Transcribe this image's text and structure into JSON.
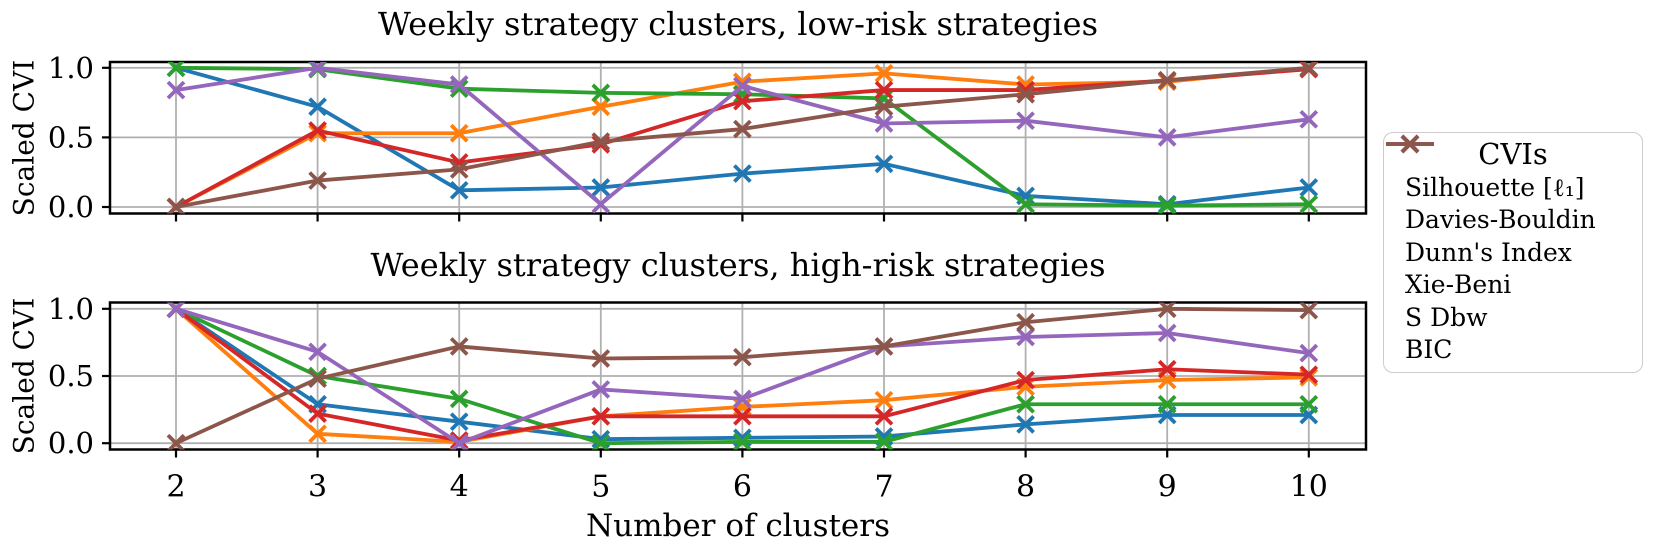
{
  "figure": {
    "xlabel": "Number of clusters",
    "ylabel": "Scaled CVI",
    "background": "#ffffff",
    "grid_color": "#b0b0b0",
    "frame_color": "#000000"
  },
  "legend": {
    "title": "CVIs",
    "position": "right"
  },
  "chart_data": [
    {
      "type": "line",
      "title": "Weekly strategy clusters, low-risk strategies",
      "xlabel": "Number of clusters",
      "ylabel": "Scaled CVI",
      "x": [
        2,
        3,
        4,
        5,
        6,
        7,
        8,
        9,
        10
      ],
      "xtick_labels": [
        "2",
        "3",
        "4",
        "5",
        "6",
        "7",
        "8",
        "9",
        "10"
      ],
      "yticks": [
        0.0,
        0.5,
        1.0
      ],
      "ytick_labels": [
        "0.0",
        "0.5",
        "1.0"
      ],
      "ylim": [
        -0.05,
        1.05
      ],
      "grid": true,
      "marker": "x",
      "series": [
        {
          "name": "Silhouette [ℓ₁]",
          "color": "#1f77b4",
          "values": [
            1.0,
            0.72,
            0.12,
            0.14,
            0.24,
            0.31,
            0.08,
            0.02,
            0.14
          ]
        },
        {
          "name": "Davies-Bouldin",
          "color": "#ff7f0e",
          "values": [
            0.0,
            0.53,
            0.53,
            0.72,
            0.9,
            0.96,
            0.88,
            0.9,
            1.0
          ]
        },
        {
          "name": "Dunn's Index",
          "color": "#2ca02c",
          "values": [
            1.0,
            0.99,
            0.85,
            0.82,
            0.81,
            0.78,
            0.02,
            0.01,
            0.02
          ]
        },
        {
          "name": "Xie-Beni",
          "color": "#d62728",
          "values": [
            0.0,
            0.55,
            0.32,
            0.45,
            0.76,
            0.84,
            0.84,
            0.91,
            0.99
          ]
        },
        {
          "name": "S Dbw",
          "color": "#9467bd",
          "values": [
            0.84,
            1.0,
            0.88,
            0.02,
            0.87,
            0.6,
            0.62,
            0.5,
            0.63
          ]
        },
        {
          "name": "BIC",
          "color": "#8c564b",
          "values": [
            0.0,
            0.19,
            0.27,
            0.47,
            0.56,
            0.72,
            0.81,
            0.91,
            1.0
          ]
        }
      ]
    },
    {
      "type": "line",
      "title": "Weekly strategy clusters, high-risk strategies",
      "xlabel": "Number of clusters",
      "ylabel": "Scaled CVI",
      "x": [
        2,
        3,
        4,
        5,
        6,
        7,
        8,
        9,
        10
      ],
      "xtick_labels": [
        "2",
        "3",
        "4",
        "5",
        "6",
        "7",
        "8",
        "9",
        "10"
      ],
      "yticks": [
        0.0,
        0.5,
        1.0
      ],
      "ytick_labels": [
        "0.0",
        "0.5",
        "1.0"
      ],
      "ylim": [
        -0.05,
        1.05
      ],
      "grid": true,
      "marker": "x",
      "series": [
        {
          "name": "Silhouette [ℓ₁]",
          "color": "#1f77b4",
          "values": [
            1.0,
            0.29,
            0.16,
            0.03,
            0.04,
            0.05,
            0.14,
            0.21,
            0.21
          ]
        },
        {
          "name": "Davies-Bouldin",
          "color": "#ff7f0e",
          "values": [
            1.0,
            0.07,
            0.01,
            0.2,
            0.27,
            0.32,
            0.42,
            0.47,
            0.49
          ]
        },
        {
          "name": "Dunn's Index",
          "color": "#2ca02c",
          "values": [
            1.0,
            0.5,
            0.33,
            0.0,
            0.01,
            0.01,
            0.29,
            0.29,
            0.29
          ]
        },
        {
          "name": "Xie-Beni",
          "color": "#d62728",
          "values": [
            1.0,
            0.22,
            0.02,
            0.2,
            0.2,
            0.2,
            0.47,
            0.55,
            0.51
          ]
        },
        {
          "name": "S Dbw",
          "color": "#9467bd",
          "values": [
            1.0,
            0.68,
            0.0,
            0.4,
            0.33,
            0.72,
            0.79,
            0.82,
            0.67
          ]
        },
        {
          "name": "BIC",
          "color": "#8c564b",
          "values": [
            0.0,
            0.48,
            0.72,
            0.63,
            0.64,
            0.72,
            0.9,
            1.0,
            0.99
          ]
        }
      ]
    }
  ]
}
